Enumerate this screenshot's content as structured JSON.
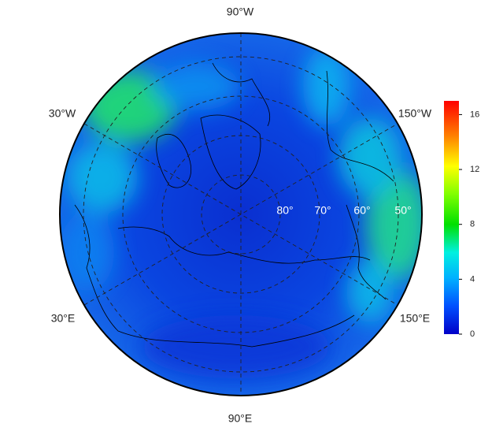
{
  "map": {
    "longitude_labels": {
      "top": "90°W",
      "upper_left": "30°W",
      "upper_right": "150°W",
      "lower_left": "30°E",
      "lower_right": "150°E",
      "bottom": "90°E"
    },
    "latitude_labels": [
      "80°",
      "70°",
      "60°",
      "50°"
    ],
    "colorbar": {
      "lim": [
        0,
        17
      ],
      "ticks": [
        0,
        4,
        8,
        12,
        16
      ]
    }
  }
}
